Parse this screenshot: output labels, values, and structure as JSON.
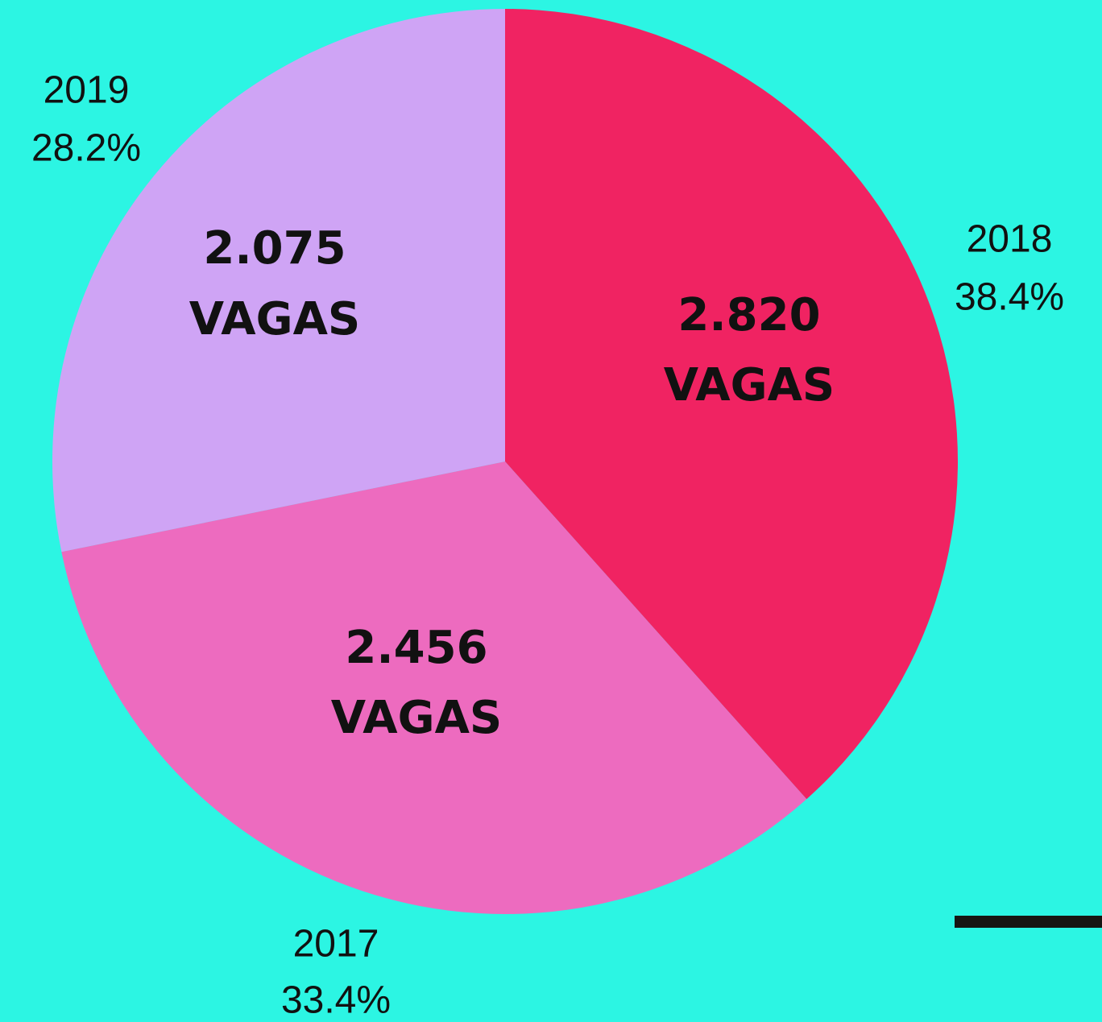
{
  "chart_data": {
    "type": "pie",
    "categories": [
      "2018",
      "2017",
      "2019"
    ],
    "values": [
      38.4,
      33.4,
      28.2
    ],
    "value_labels": [
      "38.4%",
      "33.4%",
      "28.2%"
    ],
    "colors": [
      "#f02362",
      "#ed6bbf",
      "#cfa4f5"
    ],
    "slice_labels": [
      [
        "2.820",
        "VAGAS"
      ],
      [
        "2.456",
        "VAGAS"
      ],
      [
        "2.075",
        "VAGAS"
      ]
    ]
  }
}
